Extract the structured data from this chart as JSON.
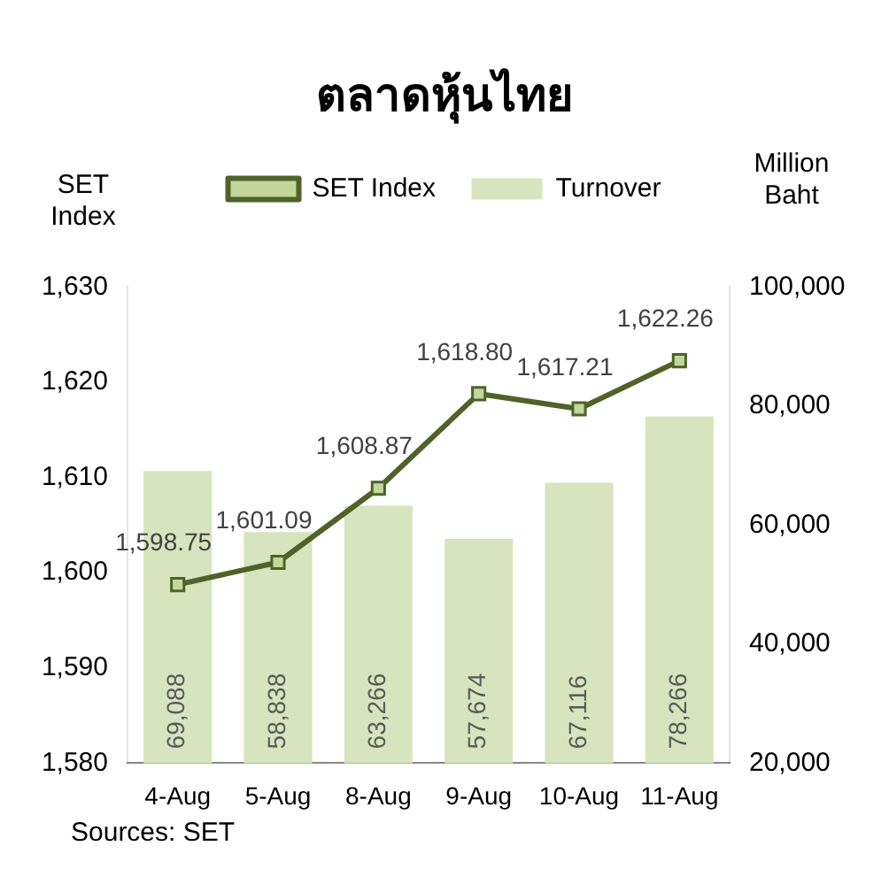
{
  "chart_data": {
    "type": "bar",
    "title": "ตลาดหุ้นไทย",
    "ylabel": "SET Index",
    "y2label": "Million Baht",
    "categories": [
      "4-Aug",
      "5-Aug",
      "8-Aug",
      "9-Aug",
      "10-Aug",
      "11-Aug"
    ],
    "series": [
      {
        "name": "Turnover",
        "axis": "y2",
        "color": "#d7e4bd",
        "values": [
          69088,
          58838,
          63266,
          57674,
          67116,
          78266
        ],
        "value_labels": [
          "69,088",
          "58,838",
          "63,266",
          "57,674",
          "67,116",
          "78,266"
        ]
      },
      {
        "name": "SET Index",
        "type": "line",
        "color": "#4f6228",
        "marker": "square",
        "values": [
          1598.75,
          1601.09,
          1608.87,
          1618.8,
          1617.21,
          1622.26
        ],
        "value_labels": [
          "1,598.75",
          "1,601.09",
          "1,608.87",
          "1,618.80",
          "1,617.21",
          "1,622.26"
        ]
      }
    ],
    "ylim": [
      1580,
      1630
    ],
    "yticks": [
      {
        "value": 1580,
        "label": "1,580"
      },
      {
        "value": 1590,
        "label": "1,590"
      },
      {
        "value": 1600,
        "label": "1,600"
      },
      {
        "value": 1610,
        "label": "1,610"
      },
      {
        "value": 1620,
        "label": "1,620"
      },
      {
        "value": 1630,
        "label": "1,630"
      }
    ],
    "y2lim": [
      20000,
      100000
    ],
    "y2ticks": [
      {
        "value": 20000,
        "label": "20,000"
      },
      {
        "value": 40000,
        "label": "40,000"
      },
      {
        "value": 60000,
        "label": "60,000"
      },
      {
        "value": 80000,
        "label": "80,000"
      },
      {
        "value": 100000,
        "label": "100,000"
      }
    ],
    "grid": false,
    "legend": "top",
    "annotations": [
      "Sources: SET"
    ]
  }
}
